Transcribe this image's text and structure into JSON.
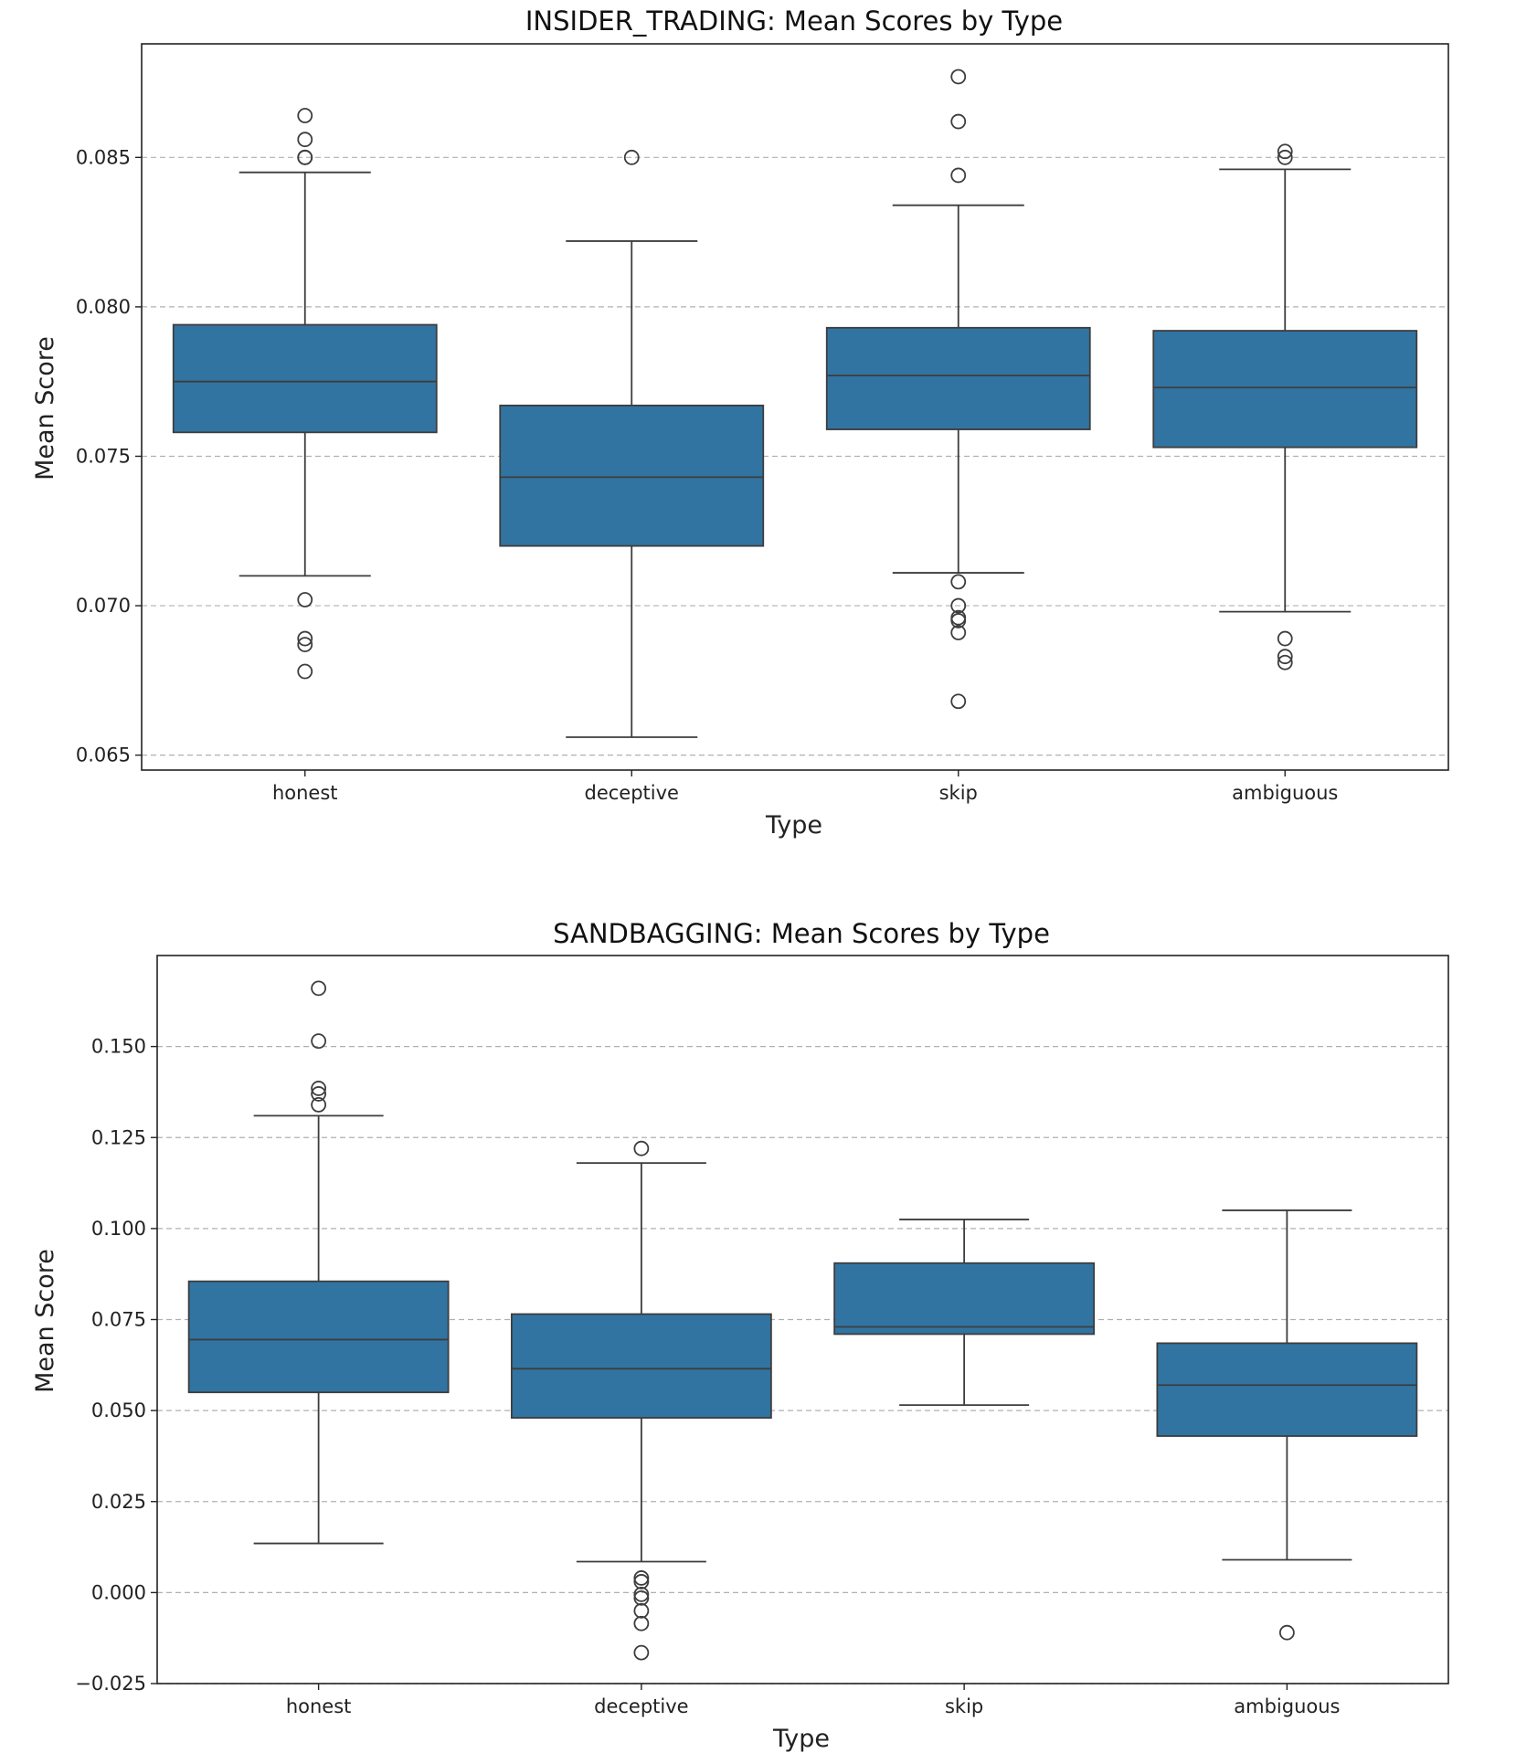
{
  "chart_data": [
    {
      "type": "box",
      "title": "INSIDER_TRADING: Mean Scores by Type",
      "xlabel": "Type",
      "ylabel": "Mean Score",
      "ylim": [
        0.0645,
        0.0888
      ],
      "yticks": [
        0.065,
        0.07,
        0.075,
        0.08,
        0.085
      ],
      "ytick_labels": [
        "0.065",
        "0.070",
        "0.075",
        "0.080",
        "0.085"
      ],
      "grid": "y",
      "categories": [
        "honest",
        "deceptive",
        "skip",
        "ambiguous"
      ],
      "color": "#3274a1",
      "boxes": [
        {
          "category": "honest",
          "whisker_low": 0.071,
          "q1": 0.0758,
          "median": 0.0775,
          "q3": 0.0794,
          "whisker_high": 0.0845,
          "outliers": [
            0.0702,
            0.0689,
            0.0687,
            0.0678,
            0.085,
            0.085,
            0.0856,
            0.0864
          ]
        },
        {
          "category": "deceptive",
          "whisker_low": 0.0656,
          "q1": 0.072,
          "median": 0.0743,
          "q3": 0.0767,
          "whisker_high": 0.0822,
          "outliers": [
            0.085
          ]
        },
        {
          "category": "skip",
          "whisker_low": 0.0711,
          "q1": 0.0759,
          "median": 0.0777,
          "q3": 0.0793,
          "whisker_high": 0.0834,
          "outliers": [
            0.0708,
            0.07,
            0.0696,
            0.0695,
            0.0691,
            0.0668,
            0.0844,
            0.0862,
            0.0877
          ]
        },
        {
          "category": "ambiguous",
          "whisker_low": 0.0698,
          "q1": 0.0753,
          "median": 0.0773,
          "q3": 0.0792,
          "whisker_high": 0.0846,
          "outliers": [
            0.0689,
            0.0683,
            0.0681,
            0.085,
            0.0852
          ]
        }
      ]
    },
    {
      "type": "box",
      "title": "SANDBAGGING: Mean Scores by Type",
      "xlabel": "Type",
      "ylabel": "Mean Score",
      "ylim": [
        -0.025,
        0.175
      ],
      "yticks": [
        -0.025,
        0.0,
        0.025,
        0.05,
        0.075,
        0.1,
        0.125,
        0.15
      ],
      "ytick_labels": [
        "−0.025",
        "0.000",
        "0.025",
        "0.050",
        "0.075",
        "0.100",
        "0.125",
        "0.150"
      ],
      "grid": "y",
      "categories": [
        "honest",
        "deceptive",
        "skip",
        "ambiguous"
      ],
      "color": "#3274a1",
      "boxes": [
        {
          "category": "honest",
          "whisker_low": 0.0135,
          "q1": 0.055,
          "median": 0.0695,
          "q3": 0.0855,
          "whisker_high": 0.131,
          "outliers": [
            0.134,
            0.137,
            0.1385,
            0.1515,
            0.166
          ]
        },
        {
          "category": "deceptive",
          "whisker_low": 0.0085,
          "q1": 0.048,
          "median": 0.0615,
          "q3": 0.0765,
          "whisker_high": 0.118,
          "outliers": [
            0.122,
            0.004,
            0.003,
            -0.0005,
            -0.0015,
            -0.005,
            -0.0085,
            -0.0165
          ]
        },
        {
          "category": "skip",
          "whisker_low": 0.0515,
          "q1": 0.071,
          "median": 0.073,
          "q3": 0.0905,
          "whisker_high": 0.1025,
          "outliers": []
        },
        {
          "category": "ambiguous",
          "whisker_low": 0.009,
          "q1": 0.043,
          "median": 0.057,
          "q3": 0.0685,
          "whisker_high": 0.105,
          "outliers": [
            -0.011
          ]
        }
      ]
    }
  ]
}
